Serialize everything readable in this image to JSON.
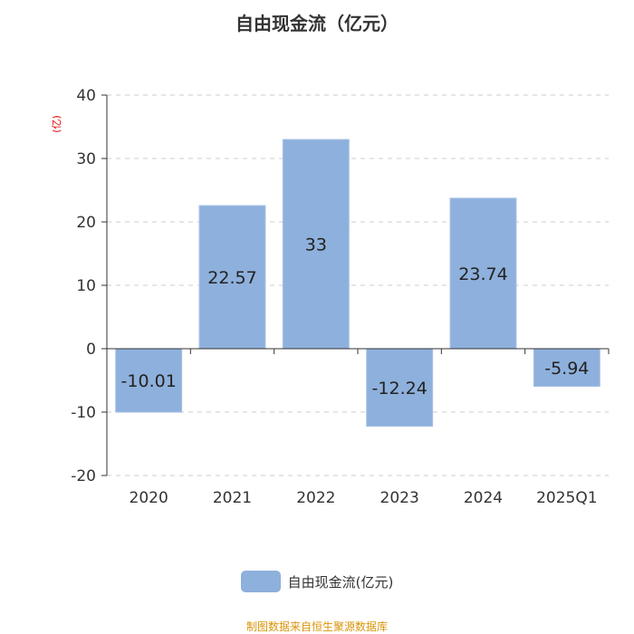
{
  "title": "自由现金流（亿元）",
  "source": "制图数据来自恒生聚源数据库",
  "chart_data": {
    "type": "bar",
    "title": "自由现金流（亿元）",
    "ylabel": "(亿)",
    "categories": [
      "2020",
      "2021",
      "2022",
      "2023",
      "2024",
      "2025Q1"
    ],
    "series": [
      {
        "name": "自由现金流(亿元)",
        "values": [
          -10.01,
          22.57,
          33,
          -12.24,
          23.74,
          -5.94
        ]
      }
    ],
    "data_labels": [
      "-10.01",
      "22.57",
      "33",
      "-12.24",
      "23.74",
      "-5.94"
    ],
    "yticks": [
      40,
      30,
      20,
      10,
      0,
      -10,
      -20
    ],
    "ylim": [
      -20,
      40
    ],
    "grid": true,
    "legend": "bottom-center",
    "colors": {
      "bar": "#8eb0dc",
      "bar_stroke": "#a7c2e6",
      "axis": "#333333",
      "grid": "#cccccc",
      "ylabel": "#e60000",
      "source": "#d9950a"
    }
  }
}
